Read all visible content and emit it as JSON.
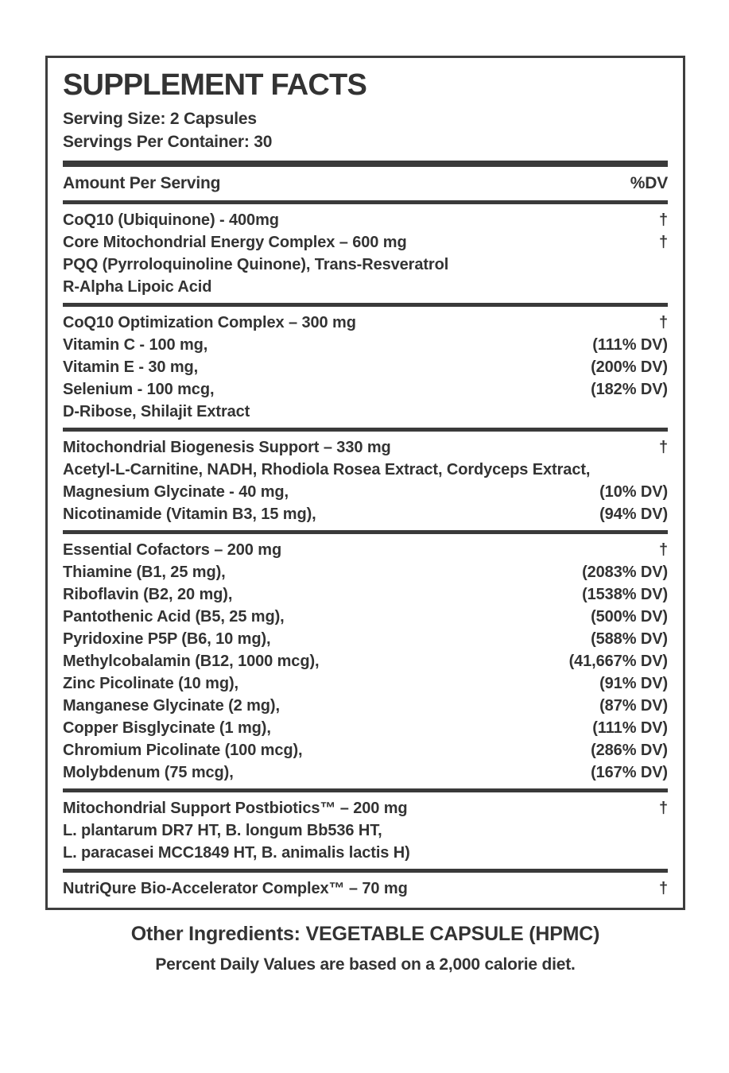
{
  "label": {
    "title": "SUPPLEMENT FACTS",
    "serving_size": "Serving Size: 2 Capsules",
    "servings_per_container": "Servings Per Container: 30",
    "column_left": "Amount Per Serving",
    "column_right": "%DV",
    "dagger_symbol": "†",
    "text_color": "#333333",
    "bar_color": "#3a3a3a",
    "sections": [
      {
        "rows": [
          {
            "name": "CoQ10 (Ubiquinone) - 400mg",
            "dv": "†"
          },
          {
            "name": "Core Mitochondrial Energy Complex – 600 mg",
            "dv": "†"
          },
          {
            "name": "PQQ (Pyrroloquinoline Quinone), Trans-Resveratrol",
            "dv": ""
          },
          {
            "name": "R-Alpha Lipoic Acid",
            "dv": ""
          }
        ]
      },
      {
        "rows": [
          {
            "name": "CoQ10 Optimization Complex – 300 mg",
            "dv": "†"
          },
          {
            "name": "Vitamin C - 100 mg,",
            "dv": "(111% DV)"
          },
          {
            "name": "Vitamin E - 30 mg,",
            "dv": "(200% DV)"
          },
          {
            "name": "Selenium - 100 mcg,",
            "dv": "(182% DV)"
          },
          {
            "name": "D-Ribose, Shilajit Extract",
            "dv": ""
          }
        ]
      },
      {
        "rows": [
          {
            "name": "Mitochondrial Biogenesis Support – 330 mg",
            "dv": "†"
          },
          {
            "name": "Acetyl-L-Carnitine, NADH, Rhodiola Rosea Extract, Cordyceps Extract,",
            "dv": ""
          },
          {
            "name": "Magnesium Glycinate - 40 mg,",
            "dv": "(10% DV)"
          },
          {
            "name": "Nicotinamide (Vitamin B3, 15 mg),",
            "dv": "(94% DV)"
          }
        ]
      },
      {
        "rows": [
          {
            "name": "Essential Cofactors – 200 mg",
            "dv": "†"
          },
          {
            "name": "Thiamine (B1, 25 mg),",
            "dv": "(2083% DV)"
          },
          {
            "name": "Riboflavin (B2, 20 mg),",
            "dv": "(1538% DV)"
          },
          {
            "name": "Pantothenic Acid (B5, 25 mg),",
            "dv": "(500% DV)"
          },
          {
            "name": "Pyridoxine P5P (B6, 10 mg),",
            "dv": "(588% DV)"
          },
          {
            "name": "Methylcobalamin (B12, 1000 mcg),",
            "dv": "(41,667% DV)"
          },
          {
            "name": "Zinc Picolinate (10 mg),",
            "dv": "(91% DV)"
          },
          {
            "name": "Manganese Glycinate (2 mg),",
            "dv": "(87% DV)"
          },
          {
            "name": "Copper Bisglycinate (1 mg),",
            "dv": "(111% DV)"
          },
          {
            "name": "Chromium Picolinate (100 mcg),",
            "dv": "(286% DV)"
          },
          {
            "name": "Molybdenum (75 mcg),",
            "dv": "(167% DV)"
          }
        ]
      },
      {
        "rows": [
          {
            "name": "Mitochondrial Support Postbiotics™ – 200 mg",
            "dv": "†"
          },
          {
            "name": "L. plantarum DR7 HT, B. longum Bb536 HT,",
            "dv": ""
          },
          {
            "name": "L. paracasei MCC1849 HT, B. animalis lactis H)",
            "dv": ""
          }
        ]
      },
      {
        "rows": [
          {
            "name": "NutriQure Bio-Accelerator Complex™ – 70 mg",
            "dv": "†"
          }
        ]
      }
    ],
    "footer_other_ingredients": "Other Ingredients: VEGETABLE CAPSULE (HPMC)",
    "footer_dv_note": "Percent Daily Values are based on a 2,000 calorie diet."
  }
}
